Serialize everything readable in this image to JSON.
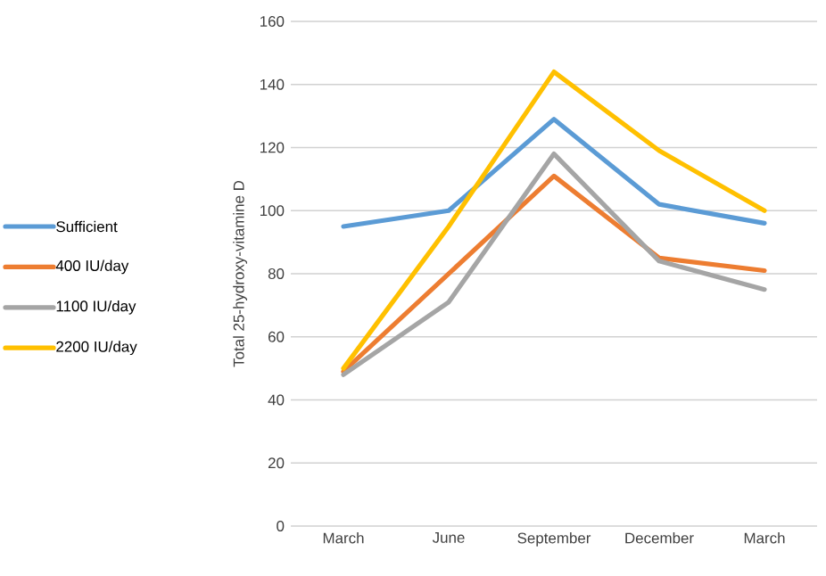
{
  "chart_data": {
    "type": "line",
    "ylabel": "Total 25-hydroxy-vitamine D",
    "categories": [
      "March",
      "June",
      "September",
      "December",
      "March"
    ],
    "series": [
      {
        "name": "Sufficient",
        "color": "#5b9bd5",
        "values": [
          95,
          100,
          129,
          102,
          96
        ]
      },
      {
        "name": "400 IU/day",
        "color": "#ed7d31",
        "values": [
          49,
          80,
          111,
          85,
          81
        ]
      },
      {
        "name": "1100 IU/day",
        "color": "#a5a5a5",
        "values": [
          48,
          71,
          118,
          84,
          75
        ]
      },
      {
        "name": "2200 IU/day",
        "color": "#ffc000",
        "values": [
          50,
          95,
          144,
          119,
          100
        ]
      }
    ],
    "ylim": [
      0,
      160
    ],
    "yticks": [
      0,
      20,
      40,
      60,
      80,
      100,
      120,
      140,
      160
    ],
    "grid": "y",
    "legend": "left",
    "line_style": "solid"
  }
}
